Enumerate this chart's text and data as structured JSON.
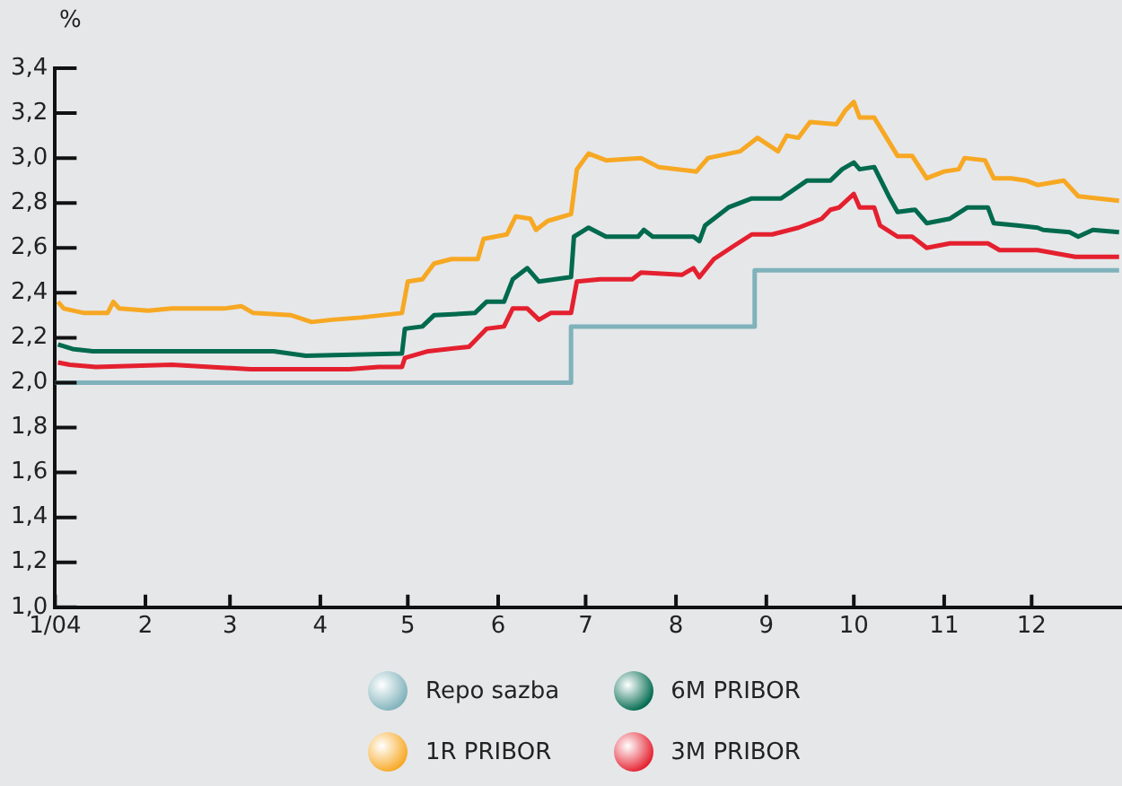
{
  "chart_data": {
    "type": "line",
    "ylabel": "%",
    "xlim": [
      "2004-01-01",
      "2005-01-01"
    ],
    "xticks": [
      {
        "value": "2004-01-01",
        "label": "1/04"
      },
      {
        "value": "2004-02-01",
        "label": "2"
      },
      {
        "value": "2004-03-01",
        "label": "3"
      },
      {
        "value": "2004-04-01",
        "label": "4"
      },
      {
        "value": "2004-05-01",
        "label": "5"
      },
      {
        "value": "2004-06-01",
        "label": "6"
      },
      {
        "value": "2004-07-01",
        "label": "7"
      },
      {
        "value": "2004-08-01",
        "label": "8"
      },
      {
        "value": "2004-09-01",
        "label": "9"
      },
      {
        "value": "2004-10-01",
        "label": "10"
      },
      {
        "value": "2004-11-01",
        "label": "11"
      },
      {
        "value": "2004-12-01",
        "label": "12"
      }
    ],
    "ylim": [
      1.0,
      3.4
    ],
    "yticks": [
      {
        "value": 1.0,
        "label": "1,0"
      },
      {
        "value": 1.2,
        "label": "1,2"
      },
      {
        "value": 1.4,
        "label": "1,4"
      },
      {
        "value": 1.6,
        "label": "1,6"
      },
      {
        "value": 1.8,
        "label": "1,8"
      },
      {
        "value": 2.0,
        "label": "2,0"
      },
      {
        "value": 2.2,
        "label": "2,2"
      },
      {
        "value": 2.4,
        "label": "2,4"
      },
      {
        "value": 2.6,
        "label": "2,6"
      },
      {
        "value": 2.8,
        "label": "2,8"
      },
      {
        "value": 3.0,
        "label": "3,0"
      },
      {
        "value": 3.2,
        "label": "3,2"
      },
      {
        "value": 3.4,
        "label": "3,4"
      }
    ],
    "legend": "bottom",
    "series": [
      {
        "name": "Repo sazba",
        "type": "step",
        "color": "#7fb2bb",
        "x": [
          "2004-01-01",
          "2004-06-26",
          "2004-08-28",
          "2004-12-31"
        ],
        "values": [
          2.0,
          2.25,
          2.5,
          2.5
        ]
      },
      {
        "name": "1R PRIBOR",
        "color": "#f7a823",
        "x": [
          "2004-01-02",
          "2004-01-04",
          "2004-01-11",
          "2004-01-19",
          "2004-01-21",
          "2004-01-23",
          "2004-02-02",
          "2004-02-10",
          "2004-02-28",
          "2004-03-05",
          "2004-03-09",
          "2004-03-22",
          "2004-03-29",
          "2004-04-05",
          "2004-04-15",
          "2004-04-29",
          "2004-05-01",
          "2004-05-06",
          "2004-05-10",
          "2004-05-16",
          "2004-05-25",
          "2004-05-27",
          "2004-06-04",
          "2004-06-07",
          "2004-06-12",
          "2004-06-14",
          "2004-06-18",
          "2004-06-26",
          "2004-06-28",
          "2004-07-02",
          "2004-07-08",
          "2004-07-20",
          "2004-07-26",
          "2004-08-08",
          "2004-08-12",
          "2004-08-23",
          "2004-08-29",
          "2004-09-05",
          "2004-09-08",
          "2004-09-12",
          "2004-09-16",
          "2004-09-25",
          "2004-09-28",
          "2004-10-01",
          "2004-10-03",
          "2004-10-08",
          "2004-10-16",
          "2004-10-21",
          "2004-10-26",
          "2004-11-01",
          "2004-11-06",
          "2004-11-08",
          "2004-11-15",
          "2004-11-18",
          "2004-11-24",
          "2004-11-29",
          "2004-12-03",
          "2004-12-12",
          "2004-12-17",
          "2004-12-31"
        ],
        "values": [
          2.36,
          2.33,
          2.31,
          2.31,
          2.36,
          2.33,
          2.32,
          2.33,
          2.33,
          2.34,
          2.31,
          2.3,
          2.27,
          2.28,
          2.29,
          2.31,
          2.45,
          2.46,
          2.53,
          2.55,
          2.55,
          2.64,
          2.66,
          2.74,
          2.73,
          2.68,
          2.72,
          2.75,
          2.95,
          3.02,
          2.99,
          3.0,
          2.96,
          2.94,
          3.0,
          3.03,
          3.09,
          3.03,
          3.1,
          3.09,
          3.16,
          3.15,
          3.21,
          3.25,
          3.18,
          3.18,
          3.01,
          3.01,
          2.91,
          2.94,
          2.95,
          3.0,
          2.99,
          2.91,
          2.91,
          2.9,
          2.88,
          2.9,
          2.83,
          2.81
        ]
      },
      {
        "name": "6M PRIBOR",
        "color": "#006a4e",
        "x": [
          "2004-01-02",
          "2004-01-07",
          "2004-01-14",
          "2004-03-16",
          "2004-03-27",
          "2004-04-29",
          "2004-04-30",
          "2004-05-06",
          "2004-05-10",
          "2004-05-24",
          "2004-05-28",
          "2004-06-03",
          "2004-06-06",
          "2004-06-11",
          "2004-06-15",
          "2004-06-26",
          "2004-06-27",
          "2004-07-02",
          "2004-07-08",
          "2004-07-19",
          "2004-07-21",
          "2004-07-24",
          "2004-08-07",
          "2004-08-09",
          "2004-08-11",
          "2004-08-19",
          "2004-08-27",
          "2004-09-06",
          "2004-09-15",
          "2004-09-23",
          "2004-09-27",
          "2004-10-01",
          "2004-10-03",
          "2004-10-08",
          "2004-10-13",
          "2004-10-16",
          "2004-10-22",
          "2004-10-26",
          "2004-11-03",
          "2004-11-09",
          "2004-11-16",
          "2004-11-18",
          "2004-11-26",
          "2004-12-03",
          "2004-12-05",
          "2004-12-14",
          "2004-12-17",
          "2004-12-22",
          "2004-12-31"
        ],
        "values": [
          2.17,
          2.15,
          2.14,
          2.14,
          2.12,
          2.13,
          2.24,
          2.25,
          2.3,
          2.31,
          2.36,
          2.36,
          2.46,
          2.51,
          2.45,
          2.47,
          2.65,
          2.69,
          2.65,
          2.65,
          2.68,
          2.65,
          2.65,
          2.63,
          2.7,
          2.78,
          2.82,
          2.82,
          2.9,
          2.9,
          2.95,
          2.98,
          2.95,
          2.96,
          2.83,
          2.76,
          2.77,
          2.71,
          2.73,
          2.78,
          2.78,
          2.71,
          2.7,
          2.69,
          2.68,
          2.67,
          2.65,
          2.68,
          2.67
        ]
      },
      {
        "name": "3M PRIBOR",
        "color": "#e4202f",
        "x": [
          "2004-01-02",
          "2004-01-06",
          "2004-01-15",
          "2004-02-10",
          "2004-03-08",
          "2004-04-11",
          "2004-04-21",
          "2004-04-29",
          "2004-04-30",
          "2004-05-08",
          "2004-05-22",
          "2004-05-28",
          "2004-06-03",
          "2004-06-06",
          "2004-06-11",
          "2004-06-15",
          "2004-06-19",
          "2004-06-26",
          "2004-06-28",
          "2004-07-06",
          "2004-07-17",
          "2004-07-20",
          "2004-08-03",
          "2004-08-07",
          "2004-08-09",
          "2004-08-14",
          "2004-08-21",
          "2004-08-27",
          "2004-09-03",
          "2004-09-12",
          "2004-09-20",
          "2004-09-23",
          "2004-09-26",
          "2004-10-01",
          "2004-10-03",
          "2004-10-08",
          "2004-10-10",
          "2004-10-16",
          "2004-10-21",
          "2004-10-26",
          "2004-11-03",
          "2004-11-16",
          "2004-11-20",
          "2004-12-03",
          "2004-12-16",
          "2004-12-31"
        ],
        "values": [
          2.09,
          2.08,
          2.07,
          2.08,
          2.06,
          2.06,
          2.07,
          2.07,
          2.11,
          2.14,
          2.16,
          2.24,
          2.25,
          2.33,
          2.33,
          2.28,
          2.31,
          2.31,
          2.45,
          2.46,
          2.46,
          2.49,
          2.48,
          2.51,
          2.47,
          2.55,
          2.61,
          2.66,
          2.66,
          2.69,
          2.73,
          2.77,
          2.78,
          2.84,
          2.78,
          2.78,
          2.7,
          2.65,
          2.65,
          2.6,
          2.62,
          2.62,
          2.59,
          2.59,
          2.56,
          2.56
        ]
      }
    ]
  }
}
